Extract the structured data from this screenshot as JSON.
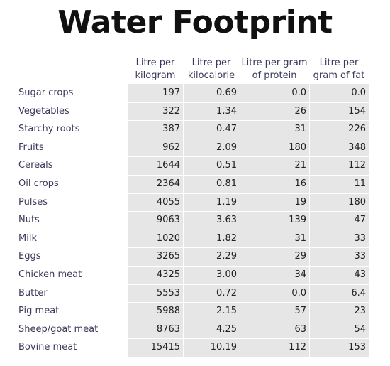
{
  "title": "Water Footprint",
  "chart_data": {
    "type": "table",
    "columns": [
      "Litre per kilogram",
      "Litre per kilocalorie",
      "Litre per gram of protein",
      "Litre per gram of fat"
    ],
    "column_lines": [
      [
        "Litre per",
        "kilogram"
      ],
      [
        "Litre per",
        "kilocalorie"
      ],
      [
        "Litre per gram",
        "of protein"
      ],
      [
        "Litre per",
        "gram of fat"
      ]
    ],
    "rows": [
      {
        "label": "Sugar crops",
        "values": [
          "197",
          "0.69",
          "0.0",
          "0.0"
        ]
      },
      {
        "label": "Vegetables",
        "values": [
          "322",
          "1.34",
          "26",
          "154"
        ]
      },
      {
        "label": "Starchy roots",
        "values": [
          "387",
          "0.47",
          "31",
          "226"
        ]
      },
      {
        "label": "Fruits",
        "values": [
          "962",
          "2.09",
          "180",
          "348"
        ]
      },
      {
        "label": "Cereals",
        "values": [
          "1644",
          "0.51",
          "21",
          "112"
        ]
      },
      {
        "label": "Oil crops",
        "values": [
          "2364",
          "0.81",
          "16",
          "11"
        ]
      },
      {
        "label": "Pulses",
        "values": [
          "4055",
          "1.19",
          "19",
          "180"
        ]
      },
      {
        "label": "Nuts",
        "values": [
          "9063",
          "3.63",
          "139",
          "47"
        ]
      },
      {
        "label": "Milk",
        "values": [
          "1020",
          "1.82",
          "31",
          "33"
        ]
      },
      {
        "label": "Eggs",
        "values": [
          "3265",
          "2.29",
          "29",
          "33"
        ]
      },
      {
        "label": "Chicken meat",
        "values": [
          "4325",
          "3.00",
          "34",
          "43"
        ]
      },
      {
        "label": "Butter",
        "values": [
          "5553",
          "0.72",
          "0.0",
          "6.4"
        ]
      },
      {
        "label": "Pig meat",
        "values": [
          "5988",
          "2.15",
          "57",
          "23"
        ]
      },
      {
        "label": "Sheep/goat meat",
        "values": [
          "8763",
          "4.25",
          "63",
          "54"
        ]
      },
      {
        "label": "Bovine meat",
        "values": [
          "15415",
          "10.19",
          "112",
          "153"
        ]
      }
    ]
  }
}
